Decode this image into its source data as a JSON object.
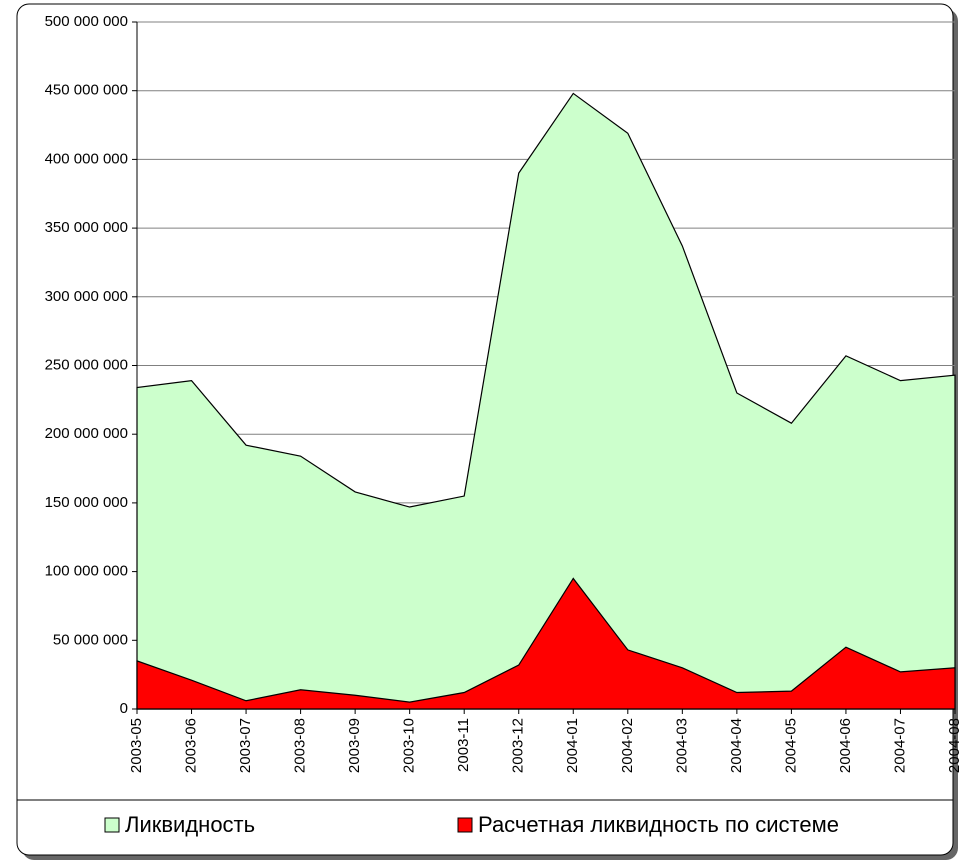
{
  "chart_data": {
    "type": "area",
    "categories": [
      "2003-05",
      "2003-06",
      "2003-07",
      "2003-08",
      "2003-09",
      "2003-10",
      "2003-11",
      "2003-12",
      "2004-01",
      "2004-02",
      "2004-03",
      "2004-04",
      "2004-05",
      "2004-06",
      "2004-07",
      "2004-08"
    ],
    "series": [
      {
        "name": "Ликвидность",
        "color": "#ccffcc",
        "values": [
          234000000,
          239000000,
          192000000,
          184000000,
          158000000,
          147000000,
          155000000,
          390000000,
          448000000,
          419000000,
          337000000,
          230000000,
          208000000,
          257000000,
          239000000,
          243000000
        ]
      },
      {
        "name": "Расчетная ликвидность по системе",
        "color": "#ff0000",
        "values": [
          35000000,
          21000000,
          6000000,
          14000000,
          10000000,
          5000000,
          12000000,
          32000000,
          95000000,
          43000000,
          30000000,
          12000000,
          13000000,
          45000000,
          27000000,
          30000000
        ]
      }
    ],
    "ylim": [
      0,
      500000000
    ],
    "yticks": [
      {
        "value": 0,
        "label": "0"
      },
      {
        "value": 50000000,
        "label": "50 000 000"
      },
      {
        "value": 100000000,
        "label": "100 000 000"
      },
      {
        "value": 150000000,
        "label": "150 000 000"
      },
      {
        "value": 200000000,
        "label": "200 000 000"
      },
      {
        "value": 250000000,
        "label": "250 000 000"
      },
      {
        "value": 300000000,
        "label": "300 000 000"
      },
      {
        "value": 350000000,
        "label": "350 000 000"
      },
      {
        "value": 400000000,
        "label": "400 000 000"
      },
      {
        "value": 450000000,
        "label": "450 000 000"
      },
      {
        "value": 500000000,
        "label": "500 000 000"
      }
    ],
    "grid": true,
    "legend": "bottom"
  }
}
